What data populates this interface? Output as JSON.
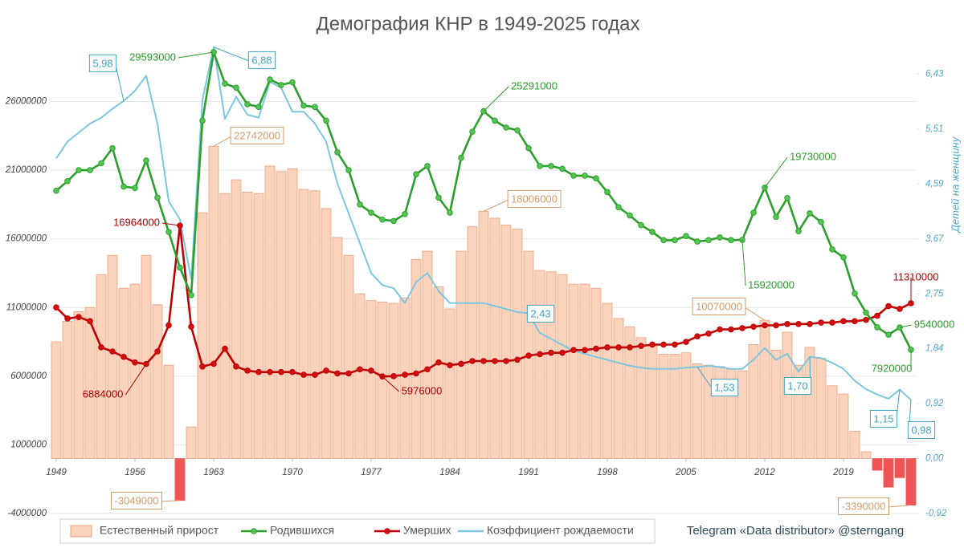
{
  "chart_data": {
    "type": "combo",
    "title": "Демография КНР в 1949-2025 годах",
    "y2label": "Детей на женщину",
    "source": "Telegram «Data distributor» @sterngang",
    "x": [
      1949,
      1950,
      1951,
      1952,
      1953,
      1954,
      1955,
      1956,
      1957,
      1958,
      1959,
      1960,
      1961,
      1962,
      1963,
      1964,
      1965,
      1966,
      1967,
      1968,
      1969,
      1970,
      1971,
      1972,
      1973,
      1974,
      1975,
      1976,
      1977,
      1978,
      1979,
      1980,
      1981,
      1982,
      1983,
      1984,
      1985,
      1986,
      1987,
      1988,
      1989,
      1990,
      1991,
      1992,
      1993,
      1994,
      1995,
      1996,
      1997,
      1998,
      1999,
      2000,
      2001,
      2002,
      2003,
      2004,
      2005,
      2006,
      2007,
      2008,
      2009,
      2010,
      2011,
      2012,
      2013,
      2014,
      2015,
      2016,
      2017,
      2018,
      2019,
      2020,
      2021,
      2022,
      2023,
      2024,
      2025
    ],
    "xlim": [
      1948.5,
      2025.5
    ],
    "xticks": [
      1949,
      1956,
      1963,
      1970,
      1977,
      1984,
      1991,
      1998,
      2005,
      2012,
      2019
    ],
    "ylim": [
      -4000000,
      30000000
    ],
    "yticks": [
      -4000000,
      1000000,
      6000000,
      11000000,
      16000000,
      21000000,
      26000000
    ],
    "y2lim": [
      -0.92,
      6.89
    ],
    "y2ticks": [
      {
        "value": -0.92,
        "label": "-0,92"
      },
      {
        "value": 0,
        "label": "0,00"
      },
      {
        "value": 0.92,
        "label": "0,92"
      },
      {
        "value": 1.84,
        "label": "1,84"
      },
      {
        "value": 2.75,
        "label": "2,75"
      },
      {
        "value": 3.67,
        "label": "3,67"
      },
      {
        "value": 4.59,
        "label": "4,59"
      },
      {
        "value": 5.51,
        "label": "5,51"
      },
      {
        "value": 6.43,
        "label": "6,43"
      }
    ],
    "grid": true,
    "legend": "bottom",
    "series": [
      {
        "name": "Естественный прирост",
        "type": "bar",
        "color": "#fbd3bd",
        "negative_color": "#f05555",
        "values": [
          8500000,
          10000000,
          10700000,
          11000000,
          13400000,
          14800000,
          12400000,
          12700000,
          14800000,
          11200000,
          6800000,
          -3049000,
          2300000,
          17900000,
          22742000,
          19300000,
          20300000,
          19400000,
          19300000,
          21300000,
          20900000,
          21100000,
          19600000,
          19500000,
          18200000,
          16100000,
          14800000,
          12000000,
          11500000,
          11400000,
          11300000,
          11700000,
          14500000,
          15100000,
          12500000,
          10900000,
          15100000,
          16900000,
          18006000,
          17500000,
          17000000,
          16700000,
          15100000,
          13700000,
          13600000,
          13400000,
          12700000,
          12700000,
          12400000,
          11300000,
          10200000,
          9600000,
          8800000,
          8200000,
          7600000,
          7600000,
          7700000,
          6900000,
          6800000,
          6700000,
          6500000,
          6400000,
          8300000,
          10070000,
          7900000,
          9200000,
          6800000,
          8100000,
          7300000,
          5300000,
          4700000,
          2000000,
          500000,
          -850000,
          -2080000,
          -1390000,
          -3390000
        ]
      },
      {
        "name": "Родившихся",
        "type": "line",
        "color": "#2ca02c",
        "values": [
          19500000,
          20200000,
          21000000,
          21000000,
          21500000,
          22600000,
          19800000,
          19700000,
          21700000,
          19000000,
          16500000,
          13900000,
          11900000,
          24600000,
          29593000,
          27300000,
          27000000,
          25800000,
          25600000,
          27600000,
          27200000,
          27400000,
          25700000,
          25600000,
          24600000,
          22300000,
          21000000,
          18500000,
          17900000,
          17400000,
          17300000,
          17800000,
          20700000,
          21300000,
          19000000,
          17900000,
          21900000,
          23800000,
          25291000,
          24600000,
          24100000,
          23900000,
          22600000,
          21300000,
          21300000,
          21100000,
          20600000,
          20600000,
          20400000,
          19400000,
          18300000,
          17700000,
          17000000,
          16500000,
          15900000,
          15900000,
          16200000,
          15800000,
          15900000,
          16100000,
          15900000,
          15920000,
          17900000,
          19730000,
          17600000,
          18970000,
          16550000,
          17860000,
          17230000,
          15230000,
          14650000,
          12020000,
          10620000,
          9560000,
          9020000,
          9540000,
          7920000
        ]
      },
      {
        "name": "Умерших",
        "type": "line",
        "color": "#c00000",
        "values": [
          11000000,
          10200000,
          10300000,
          10000000,
          8100000,
          7800000,
          7400000,
          7000000,
          6884000,
          7800000,
          9700000,
          16964000,
          9600000,
          6700000,
          6900000,
          8000000,
          6700000,
          6400000,
          6300000,
          6300000,
          6300000,
          6300000,
          6100000,
          6100000,
          6400000,
          6200000,
          6200000,
          6500000,
          6400000,
          5976000,
          6000000,
          6100000,
          6200000,
          6500000,
          7000000,
          6800000,
          6900000,
          7100000,
          7100000,
          7100000,
          7100000,
          7200000,
          7500000,
          7600000,
          7700000,
          7700000,
          7900000,
          7900000,
          8000000,
          8100000,
          8100000,
          8100000,
          8200000,
          8300000,
          8300000,
          8300000,
          8500000,
          8900000,
          9100000,
          9400000,
          9400000,
          9500000,
          9600000,
          9700000,
          9700000,
          9800000,
          9800000,
          9800000,
          9900000,
          9900000,
          10000000,
          10000000,
          10100000,
          10400000,
          11100000,
          10900000,
          11310000
        ]
      },
      {
        "name": "Коэффициент рождаемости",
        "type": "line",
        "axis": "y2",
        "color": "#7cc6df",
        "values": [
          5.02,
          5.3,
          5.45,
          5.6,
          5.7,
          5.85,
          5.98,
          6.15,
          6.4,
          5.6,
          4.3,
          4.0,
          3.0,
          6.0,
          6.88,
          5.68,
          6.05,
          5.75,
          5.7,
          6.3,
          6.2,
          5.8,
          5.8,
          5.6,
          5.3,
          4.6,
          4.1,
          3.6,
          3.1,
          2.9,
          2.85,
          2.6,
          2.95,
          3.1,
          2.8,
          2.6,
          2.6,
          2.6,
          2.6,
          2.55,
          2.5,
          2.45,
          2.43,
          2.1,
          2.0,
          1.9,
          1.8,
          1.75,
          1.7,
          1.65,
          1.6,
          1.55,
          1.52,
          1.5,
          1.5,
          1.5,
          1.52,
          1.53,
          1.55,
          1.53,
          1.5,
          1.5,
          1.65,
          1.85,
          1.65,
          1.75,
          1.45,
          1.7,
          1.68,
          1.6,
          1.5,
          1.3,
          1.16,
          1.07,
          1.0,
          1.15,
          0.98
        ],
        "value_labels": [
          null,
          null,
          null,
          null,
          null,
          null,
          "5,98",
          null,
          null,
          null,
          null,
          null,
          null,
          null,
          "6,88",
          null,
          null,
          null,
          null,
          null,
          null,
          null,
          null,
          null,
          null,
          null,
          null,
          null,
          null,
          null,
          null,
          null,
          null,
          null,
          null,
          null,
          null,
          null,
          null,
          null,
          null,
          null,
          "2,43",
          null,
          null,
          null,
          null,
          null,
          null,
          null,
          null,
          null,
          null,
          null,
          null,
          null,
          null,
          "1,53",
          null,
          null,
          null,
          null,
          null,
          null,
          null,
          null,
          null,
          "1,70",
          null,
          null,
          null,
          null,
          null,
          null,
          null,
          "1,15",
          "0,98"
        ]
      }
    ]
  }
}
